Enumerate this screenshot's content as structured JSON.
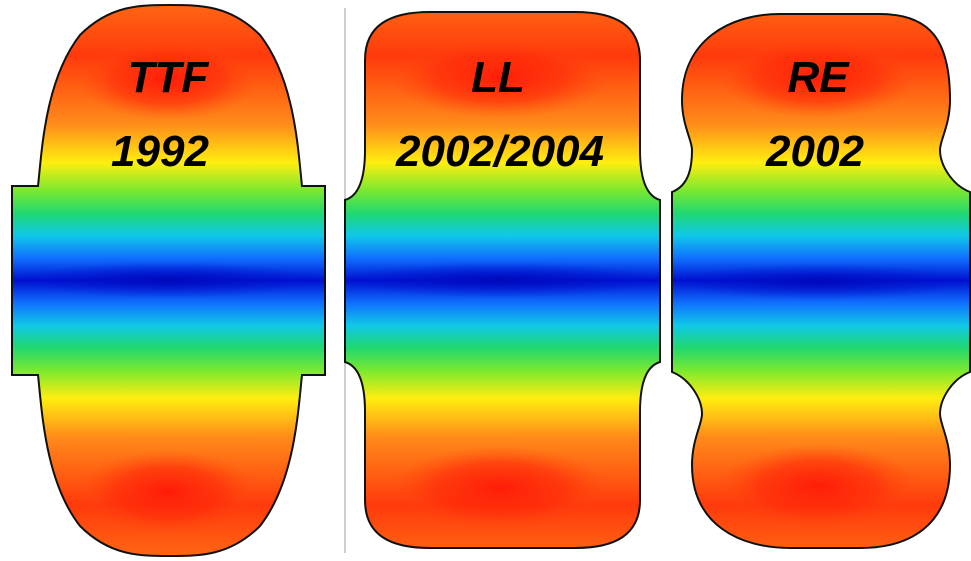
{
  "cavities": [
    {
      "id": "ttf",
      "name": "TTF",
      "year": "1992"
    },
    {
      "id": "ll",
      "name": "LL",
      "year": "2002/2004"
    },
    {
      "id": "re",
      "name": "RE",
      "year": "2002"
    }
  ],
  "colors": {
    "field_high": "#ff2a0a",
    "field_orange": "#ff8a1a",
    "field_yellow": "#ffee10",
    "field_green": "#3ee030",
    "field_cyan": "#10c8e8",
    "field_blue": "#1060ff",
    "field_low": "#0010d0",
    "outline": "#111111",
    "divider": "#bdbdbd"
  }
}
